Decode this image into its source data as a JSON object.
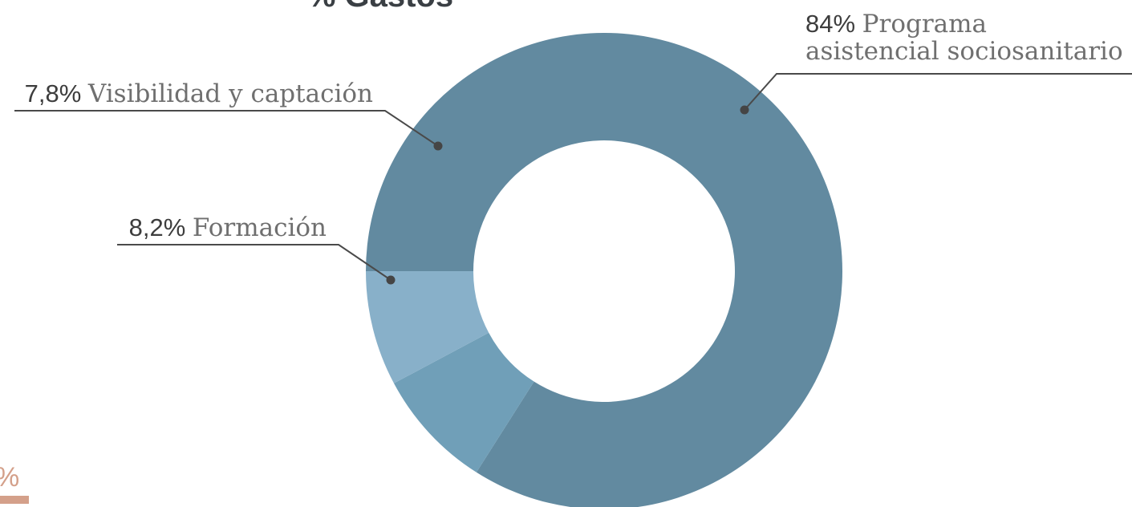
{
  "chart_data": {
    "type": "pie",
    "title": "% Gastos",
    "donut": true,
    "legend": "callout labels",
    "series": [
      {
        "name": "% Gastos",
        "slices": [
          {
            "label": "Programa asistencial sociosanitario",
            "label_lines": [
              "Programa",
              "asistencial sociosanitario"
            ],
            "value": 84,
            "display": "84%",
            "color": "#628aa0"
          },
          {
            "label": "Formación",
            "label_lines": [
              "Formación"
            ],
            "value": 8.2,
            "display": "8,2%",
            "color": "#709fb8"
          },
          {
            "label": "Visibilidad y captación",
            "label_lines": [
              "Visibilidad y captación"
            ],
            "value": 7.8,
            "display": "7,8%",
            "color": "#88b0c9"
          }
        ]
      }
    ]
  },
  "corner_fragment": {
    "text": "%",
    "color": "#d4a08a"
  }
}
